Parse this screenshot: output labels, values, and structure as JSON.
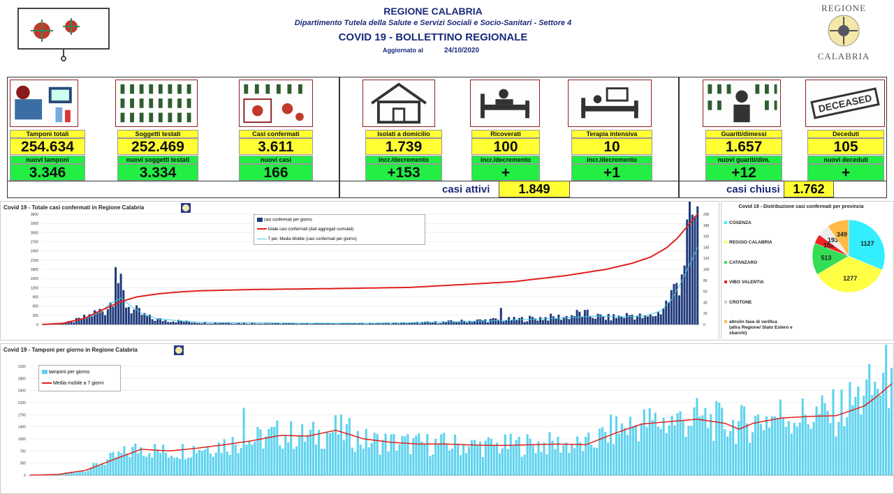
{
  "header": {
    "region": "REGIONE CALABRIA",
    "department": "Dipartimento Tutela della Salute e Servizi Sociali e Socio-Sanitari - Settore 4",
    "bulletin": "COVID 19 - BOLLETTINO REGIONALE",
    "updated_label": "Aggiornato al",
    "updated_date": "24/10/2020",
    "logo_top": "REGIONE",
    "logo_bottom": "CALABRIA"
  },
  "stats": {
    "tamponi": {
      "label": "Tamponi totali",
      "value": "254.634",
      "new_label": "nuovi tamponi",
      "new_value": "3.346"
    },
    "soggetti": {
      "label": "Soggetti testati",
      "value": "252.469",
      "new_label": "nuovi soggetti testati",
      "new_value": "3.334"
    },
    "confermati": {
      "label": "Casi confermati",
      "value": "3.611",
      "new_label": "nuovi casi",
      "new_value": "166"
    },
    "isolati": {
      "label": "Isolati a domicilio",
      "value": "1.739",
      "new_label": "incr./decremento",
      "new_value": "+153"
    },
    "ricoverati": {
      "label": "Ricoverati",
      "value": "100",
      "new_label": "incr./decremento",
      "new_value": "+"
    },
    "terapia": {
      "label": "Terapia intensiva",
      "value": "10",
      "new_label": "incr./decremento",
      "new_value": "+1"
    },
    "guariti": {
      "label": "Guariti/dimessi",
      "value": "1.657",
      "new_label": "nuovi guariti/dim.",
      "new_value": "+12"
    },
    "deceduti": {
      "label": "Deceduti",
      "value": "105",
      "new_label": "nuovi deceduti",
      "new_value": "+"
    },
    "deceased_stamp": "DECEASED",
    "casi_attivi_label": "casi attivi",
    "casi_attivi_value": "1.849",
    "casi_chiusi_label": "casi chiusi",
    "casi_chiusi_value": "1.762"
  },
  "colors": {
    "bars_dark": "#1f3a7a",
    "cumulative": "#e0201c",
    "moving_avg": "#3fc8e8",
    "tests_bars": "#5fd3ee",
    "stat_yellow": "#ffff33",
    "stat_green": "#22ee44"
  },
  "chart_data": [
    {
      "type": "bar",
      "title": "Covid 19 - Totale casi confermati in Regione Calabria",
      "ylim": [
        0,
        3600
      ],
      "yticks": [
        "0",
        "300",
        "600",
        "900",
        "1200",
        "1500",
        "1800",
        "2100",
        "2400",
        "2700",
        "3000",
        "3300",
        "3600"
      ],
      "y2lim": [
        0,
        200
      ],
      "y2ticks": [
        "0",
        "20",
        "40",
        "60",
        "80",
        "100",
        "120",
        "140",
        "160",
        "180",
        "200"
      ],
      "series": [
        {
          "name": "casi confermati per giorno",
          "kind": "bar",
          "axis": "right",
          "color": "#1f3a7a"
        },
        {
          "name": "totale casi confermati (dati aggregati cumulati)",
          "kind": "line",
          "axis": "left",
          "color": "#e0201c"
        },
        {
          "name": "7 per. Media Mobile (casi confermati per giorno)",
          "kind": "line",
          "axis": "right",
          "color": "#3fc8e8"
        }
      ],
      "daily_keypoints": [
        [
          0,
          0
        ],
        [
          4,
          0
        ],
        [
          8,
          2
        ],
        [
          12,
          6
        ],
        [
          16,
          12
        ],
        [
          20,
          20
        ],
        [
          24,
          28
        ],
        [
          26,
          40
        ],
        [
          28,
          104
        ],
        [
          30,
          60
        ],
        [
          32,
          40
        ],
        [
          35,
          25
        ],
        [
          38,
          18
        ],
        [
          42,
          10
        ],
        [
          46,
          8
        ],
        [
          50,
          7
        ],
        [
          55,
          5
        ],
        [
          60,
          4
        ],
        [
          65,
          3
        ],
        [
          70,
          3
        ],
        [
          80,
          2
        ],
        [
          90,
          2
        ],
        [
          100,
          2
        ],
        [
          110,
          2
        ],
        [
          120,
          2
        ],
        [
          130,
          2
        ],
        [
          140,
          3
        ],
        [
          150,
          4
        ],
        [
          160,
          6
        ],
        [
          170,
          8
        ],
        [
          180,
          9
        ],
        [
          190,
          12
        ],
        [
          200,
          14
        ],
        [
          205,
          20
        ],
        [
          210,
          16
        ],
        [
          215,
          12
        ],
        [
          220,
          14
        ],
        [
          225,
          18
        ],
        [
          230,
          12
        ],
        [
          235,
          20
        ],
        [
          238,
          38
        ],
        [
          241,
          60
        ],
        [
          244,
          108
        ],
        [
          246,
          150
        ],
        [
          248,
          190
        ],
        [
          249,
          180
        ],
        [
          250,
          166
        ]
      ],
      "cumulative_keypoints": [
        [
          0,
          0
        ],
        [
          8,
          40
        ],
        [
          16,
          200
        ],
        [
          24,
          520
        ],
        [
          30,
          750
        ],
        [
          36,
          900
        ],
        [
          44,
          1000
        ],
        [
          52,
          1060
        ],
        [
          60,
          1100
        ],
        [
          80,
          1140
        ],
        [
          110,
          1170
        ],
        [
          140,
          1210
        ],
        [
          160,
          1300
        ],
        [
          180,
          1400
        ],
        [
          200,
          1600
        ],
        [
          215,
          1800
        ],
        [
          225,
          2000
        ],
        [
          232,
          2200
        ],
        [
          238,
          2500
        ],
        [
          242,
          2800
        ],
        [
          246,
          3200
        ],
        [
          250,
          3611
        ]
      ],
      "moving_avg_keypoints": [
        [
          0,
          0
        ],
        [
          8,
          2
        ],
        [
          16,
          10
        ],
        [
          22,
          22
        ],
        [
          26,
          38
        ],
        [
          30,
          48
        ],
        [
          34,
          32
        ],
        [
          38,
          20
        ],
        [
          44,
          10
        ],
        [
          52,
          7
        ],
        [
          60,
          4
        ],
        [
          80,
          3
        ],
        [
          110,
          2
        ],
        [
          140,
          3
        ],
        [
          160,
          5
        ],
        [
          180,
          8
        ],
        [
          200,
          12
        ],
        [
          210,
          15
        ],
        [
          220,
          14
        ],
        [
          230,
          15
        ],
        [
          236,
          25
        ],
        [
          240,
          45
        ],
        [
          244,
          80
        ],
        [
          248,
          120
        ],
        [
          250,
          140
        ]
      ]
    },
    {
      "type": "pie",
      "title": "Covid 19 - Distribuzione casi confermati per provincia",
      "slices": [
        {
          "label": "COSENZA",
          "value": 1127,
          "color": "#33eeff"
        },
        {
          "label": "REGGIO CALABRIA",
          "value": 1277,
          "color": "#ffff44"
        },
        {
          "label": "CATANZARO",
          "value": 513,
          "color": "#33dd55"
        },
        {
          "label": "VIBO VALENTIA",
          "value": 152,
          "color": "#ee2222"
        },
        {
          "label": "CROTONE",
          "value": 193,
          "color": "#eeeeee"
        },
        {
          "label": "altro/in fase di verifica (altra Regione/ Stato Estero e sbarchi)",
          "value": 349,
          "color": "#ffbb44"
        }
      ]
    },
    {
      "type": "bar",
      "title": "Covid 19 - Tamponi per giorno in Regione Calabria",
      "ylim": [
        0,
        3150
      ],
      "yticks": [
        "0",
        "350",
        "700",
        "1050",
        "1400",
        "1750",
        "2100",
        "2450",
        "2800",
        "3150"
      ],
      "series": [
        {
          "name": "tamponi per giorno",
          "kind": "bar",
          "color": "#5fd3ee"
        },
        {
          "name": "Media mobile a 7 giorni",
          "kind": "line",
          "color": "#e0201c"
        }
      ],
      "daily_keypoints": [
        [
          0,
          0
        ],
        [
          10,
          30
        ],
        [
          20,
          150
        ],
        [
          30,
          500
        ],
        [
          40,
          800
        ],
        [
          50,
          650
        ],
        [
          60,
          800
        ],
        [
          70,
          900
        ],
        [
          80,
          1000
        ],
        [
          90,
          1200
        ],
        [
          95,
          1150
        ],
        [
          100,
          1100
        ],
        [
          110,
          1300
        ],
        [
          115,
          1200
        ],
        [
          120,
          1000
        ],
        [
          130,
          950
        ],
        [
          140,
          900
        ],
        [
          150,
          900
        ],
        [
          160,
          850
        ],
        [
          170,
          850
        ],
        [
          180,
          900
        ],
        [
          190,
          900
        ],
        [
          200,
          850
        ],
        [
          210,
          1300
        ],
        [
          220,
          1500
        ],
        [
          230,
          1550
        ],
        [
          240,
          1650
        ],
        [
          250,
          1500
        ],
        [
          255,
          1450
        ],
        [
          260,
          1550
        ],
        [
          270,
          1750
        ],
        [
          280,
          1700
        ],
        [
          290,
          1800
        ],
        [
          300,
          2300
        ],
        [
          305,
          2500
        ],
        [
          310,
          2950
        ]
      ],
      "moving_avg_keypoints": [
        [
          0,
          0
        ],
        [
          10,
          20
        ],
        [
          20,
          140
        ],
        [
          30,
          450
        ],
        [
          40,
          750
        ],
        [
          50,
          700
        ],
        [
          60,
          780
        ],
        [
          70,
          880
        ],
        [
          80,
          1000
        ],
        [
          90,
          1150
        ],
        [
          100,
          1130
        ],
        [
          110,
          1300
        ],
        [
          120,
          1050
        ],
        [
          130,
          950
        ],
        [
          140,
          900
        ],
        [
          150,
          900
        ],
        [
          160,
          870
        ],
        [
          170,
          860
        ],
        [
          180,
          880
        ],
        [
          190,
          900
        ],
        [
          200,
          880
        ],
        [
          210,
          1200
        ],
        [
          220,
          1480
        ],
        [
          230,
          1550
        ],
        [
          240,
          1620
        ],
        [
          250,
          1500
        ],
        [
          255,
          1330
        ],
        [
          260,
          1500
        ],
        [
          270,
          1650
        ],
        [
          280,
          1700
        ],
        [
          290,
          1720
        ],
        [
          300,
          2000
        ],
        [
          305,
          2300
        ],
        [
          310,
          2650
        ]
      ]
    }
  ]
}
